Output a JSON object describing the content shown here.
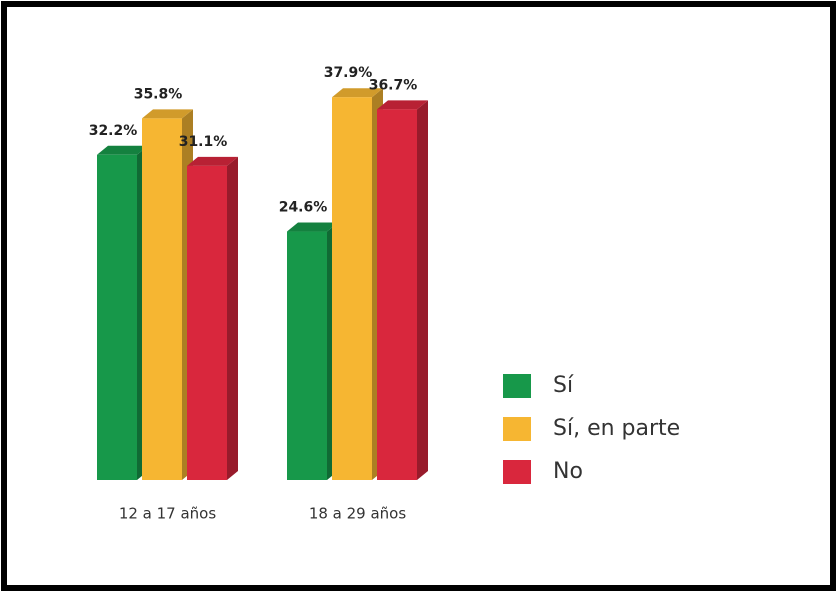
{
  "chart_data": {
    "type": "bar",
    "categories": [
      "12 a 17 años",
      "18 a 29 años"
    ],
    "series": [
      {
        "name": "Sí",
        "color": "#17984a",
        "values": [
          32.2,
          24.6
        ],
        "value_labels": [
          "32.2%",
          "24.6%"
        ]
      },
      {
        "name": "Sí, en parte",
        "color": "#f6b632",
        "values": [
          35.8,
          37.9
        ],
        "value_labels": [
          "35.8%",
          "37.9%"
        ]
      },
      {
        "name": "No",
        "color": "#d9273d",
        "values": [
          31.1,
          36.7
        ],
        "value_labels": [
          "31.1%",
          "36.7%"
        ]
      }
    ]
  }
}
